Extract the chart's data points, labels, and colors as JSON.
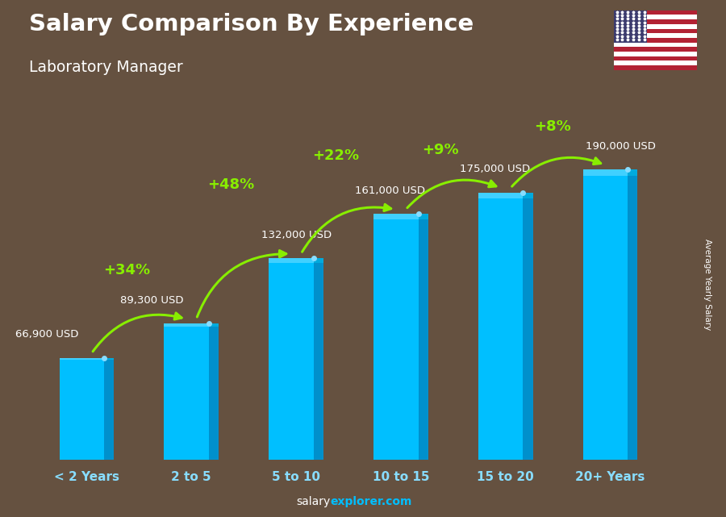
{
  "title": "Salary Comparison By Experience",
  "subtitle": "Laboratory Manager",
  "categories": [
    "< 2 Years",
    "2 to 5",
    "5 to 10",
    "10 to 15",
    "15 to 20",
    "20+ Years"
  ],
  "values": [
    66900,
    89300,
    132000,
    161000,
    175000,
    190000
  ],
  "value_labels": [
    "66,900 USD",
    "89,300 USD",
    "132,000 USD",
    "161,000 USD",
    "175,000 USD",
    "190,000 USD"
  ],
  "pct_labels": [
    "+34%",
    "+48%",
    "+22%",
    "+9%",
    "+8%"
  ],
  "bar_color_main": "#00BFFF",
  "bar_color_light": "#40D0FF",
  "bar_color_dark": "#0090CC",
  "bar_color_darker": "#006699",
  "bar_color_top": "#00AADD",
  "pct_color": "#88EE00",
  "salary_label_color": "#FFFFFF",
  "title_color": "#FFFFFF",
  "subtitle_color": "#FFFFFF",
  "bg_color": "#5a4535",
  "ylabel": "Average Yearly Salary",
  "footer_salary": "salary",
  "footer_explorer": "explorer.com",
  "ylim": [
    0,
    230000
  ],
  "bar_width": 0.52,
  "xlim": [
    -0.55,
    5.55
  ]
}
